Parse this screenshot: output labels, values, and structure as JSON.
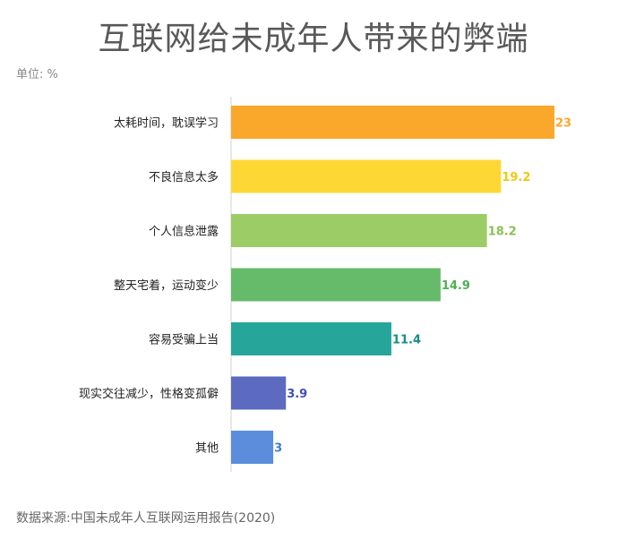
{
  "title": "互联网给未成年人带来的弊端",
  "unit_label": "单位: %",
  "source": "数据来源:中国未成年人互联网运用报告(2020)",
  "chart_data": {
    "type": "bar",
    "orientation": "horizontal",
    "title": "互联网给未成年人带来的弊端",
    "categories": [
      "太耗时间，耽误学习",
      "不良信息太多",
      "个人信息泄露",
      "整天宅着，运动变少",
      "容易受骗上当",
      "现实交往减少，性格变孤僻",
      "其他"
    ],
    "values": [
      23,
      19.2,
      18.2,
      14.9,
      11.4,
      3.9,
      3
    ],
    "value_labels": [
      "23",
      "19.2",
      "18.2",
      "14.9",
      "11.4",
      "3.9",
      "3"
    ],
    "bar_colors": [
      "#F9A82B",
      "#FDD835",
      "#9CCC65",
      "#66BB6A",
      "#26A69A",
      "#5C6BC0",
      "#5B8DDC"
    ],
    "label_colors": [
      "#F9A82B",
      "#F2C70F",
      "#8CBF55",
      "#4CAF50",
      "#168E83",
      "#3F51B5",
      "#3F7FCF"
    ],
    "xlim": [
      0,
      23
    ],
    "xlabel": "",
    "ylabel": "",
    "grid": false,
    "legend": "none"
  }
}
